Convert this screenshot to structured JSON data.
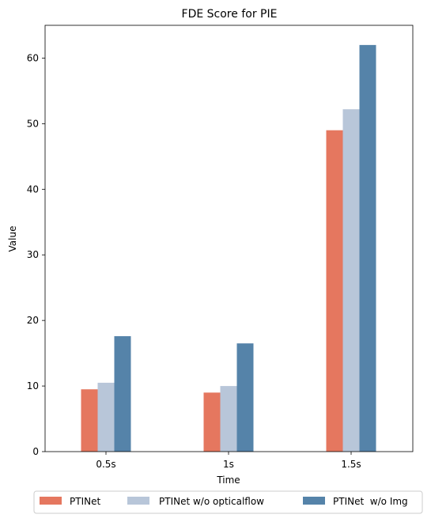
{
  "chart_data": {
    "type": "bar",
    "title": "FDE Score for PIE",
    "xlabel": "Time",
    "ylabel": "Value",
    "categories": [
      "0.5s",
      "1s",
      "1.5s"
    ],
    "ylim": [
      0,
      65
    ],
    "yticks": [
      0,
      10,
      20,
      30,
      40,
      50,
      60
    ],
    "grid": false,
    "legend_position": "bottom",
    "series": [
      {
        "name": "PTINet",
        "values": [
          9.5,
          9.0,
          49.0
        ],
        "color": "#e5775f"
      },
      {
        "name": "PTINet w/o opticalflow",
        "values": [
          10.5,
          10.0,
          52.2
        ],
        "color": "#b8c6d9"
      },
      {
        "name": "PTINet  w/o Img",
        "values": [
          17.6,
          16.5,
          62.0
        ],
        "color": "#5583a9"
      }
    ]
  }
}
